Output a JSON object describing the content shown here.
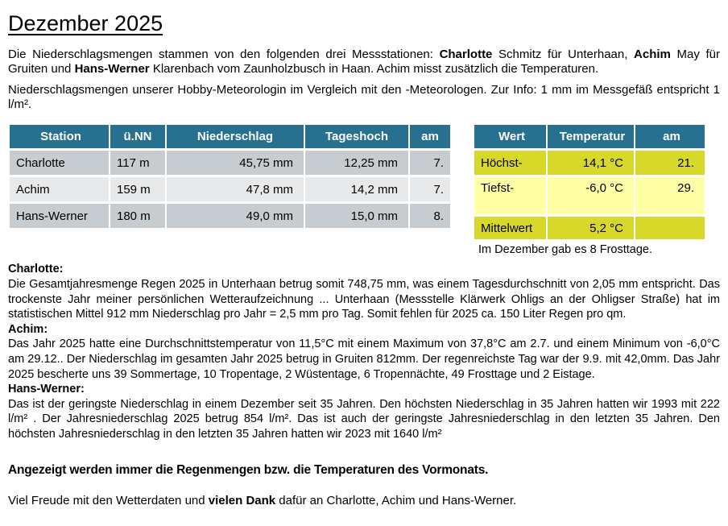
{
  "title": "Dezember 2025",
  "intro": {
    "segments": [
      {
        "t": "Die Niederschlagsmengen stammen von den folgenden drei Messstationen: "
      },
      {
        "t": "Charlotte",
        "b": true
      },
      {
        "t": " Schmitz für Unterhaan, "
      },
      {
        "t": "Achim",
        "b": true
      },
      {
        "t": " May für Gruiten und "
      },
      {
        "t": "Hans-Werner",
        "b": true
      },
      {
        "t": " Klarenbach vom Zaunholzbusch in Haan. Achim misst zusätzlich die Temperaturen."
      }
    ],
    "info_text": "Niederschlagsmengen unserer Hobby-Meteorologin im Vergleich mit den -Meteorologen. Zur Info: 1 mm im Messgefäß entspricht 1 l/m²."
  },
  "precipitation_table": {
    "headers": [
      "Station",
      "ü.NN",
      "Niederschlag",
      "Tageshoch",
      "am"
    ],
    "rows": [
      [
        "Charlotte",
        "117 m",
        "45,75 mm",
        "12,25 mm",
        "7."
      ],
      [
        "Achim",
        "159 m",
        "47,8 mm",
        "14,2 mm",
        "7."
      ],
      [
        "Hans-Werner",
        "180 m",
        "49,0 mm",
        "15,0 mm",
        "8."
      ]
    ]
  },
  "temperature_table": {
    "headers": [
      "Wert",
      "Temperatur",
      "am"
    ],
    "rows": [
      [
        "Höchst-",
        "14,1 °C",
        "21."
      ],
      [
        "Tiefst-",
        "-6,0 °C",
        "29."
      ],
      [
        "Mittelwert",
        "5,2 °C",
        ""
      ]
    ],
    "footnote": "Im Dezember gab es 8 Frosttage."
  },
  "sections": [
    {
      "heading": "Charlotte:",
      "text": "Die Gesamtjahresmenge Regen 2025 in Unterhaan betrug somit 748,75 mm, was einem Tagesdurchschnitt von 2,05 mm entspricht. Das trockenste Jahr meiner persönlichen Wetteraufzeichnung ... Unterhaan (Messstelle Klärwerk Ohligs an der Ohligser Straße) hat im statistischen Mittel 912 mm Niederschlag pro Jahr = 2,5 mm pro Tag. Somit fehlen für 2025 ca. 150 Liter Regen pro qm."
    },
    {
      "heading": "Achim:",
      "text": "Das Jahr 2025 hatte eine Durchschnittstemperatur von 11,5°C mit einem Maximum von 37,8°C am 2.7. und einem Minimum von -6,0°C am 29.12.. Der Niederschlag im gesamten Jahr 2025 betrug in Gruiten 812mm. Der regenreichste Tag war der 9.9. mit 42,0mm. Das Jahr 2025 bescherte uns 39 Sommertage, 10 Tropentage, 2 Wüstentage, 6 Tropennächte, 49 Frosttage und 2 Eistage."
    },
    {
      "heading": "Hans-Werner:",
      "text": "Das ist der geringste Niederschlag in einem Dezember seit 35 Jahren. Den höchsten Niederschlag in 35 Jahren hatten wir 1993 mit 222 l/m² . Der Jahresniederschlag 2025 betrug 854 l/m². Das ist auch der geringste Jahresniederschlag in den letzten 35 Jahren. Den höchsten Jahresniederschlag in den letzten 35 Jahren hatten wir 2023 mit 1640 l/m²"
    }
  ],
  "footer": {
    "bold_note": "Angezeigt werden immer die Regenmengen bzw. die Temperaturen des Vormonats.",
    "closing_segments": [
      {
        "t": "Viel Freude mit den Wetterdaten und "
      },
      {
        "t": "vielen Dank",
        "b": true
      },
      {
        "t": " dafür an Charlotte, Achim und Hans-Werner."
      }
    ]
  },
  "colors": {
    "header-teal": "#28708F",
    "header-text": "#FFFFFF",
    "row-gray-dark": "#C7CCD1",
    "row-gray-light": "#E7E9EB",
    "row-yellow-dark": "#D7D829",
    "row-yellow-pale": "#FFFFA6"
  }
}
